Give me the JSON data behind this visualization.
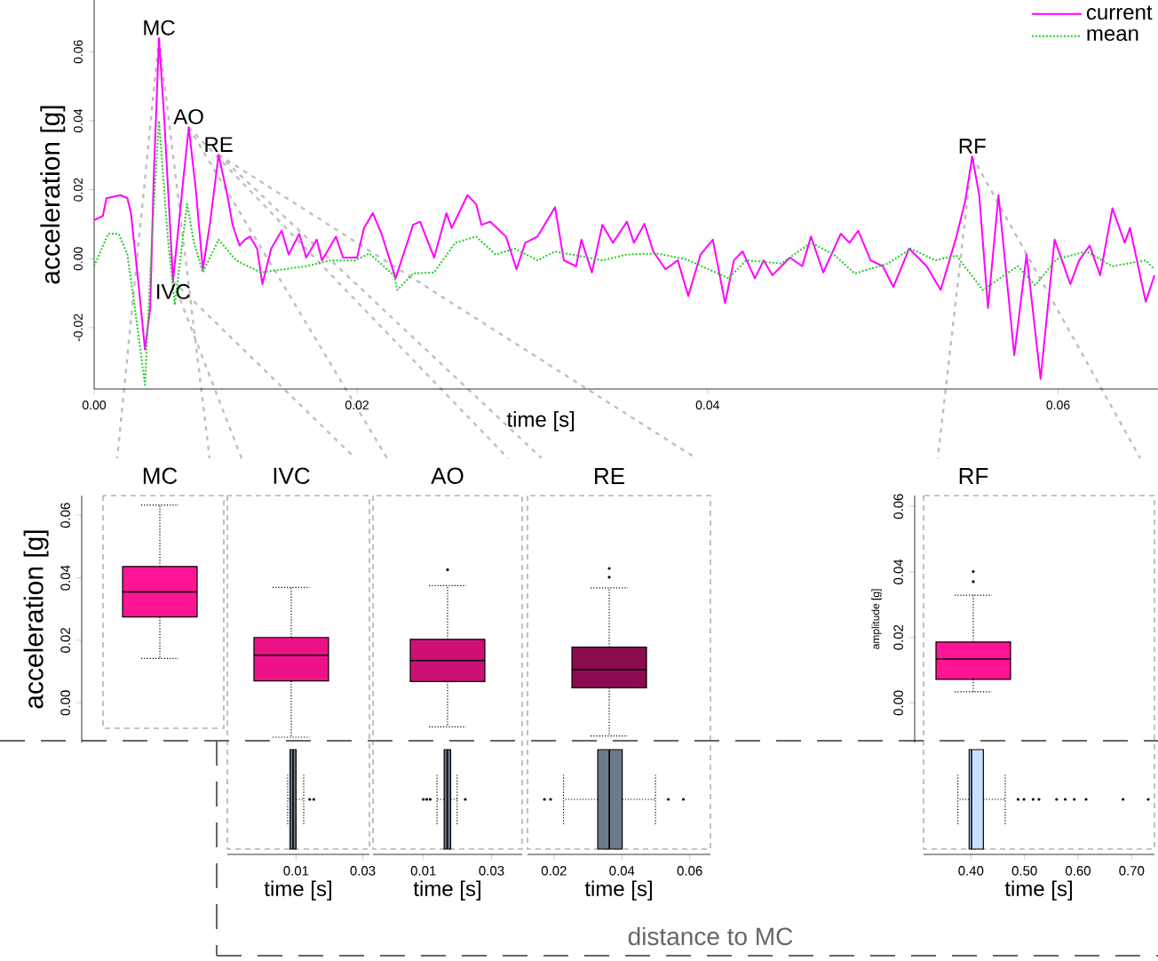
{
  "chart_data": [
    {
      "type": "line",
      "xlabel": "time [s]",
      "ylabel": "acceleration [g]",
      "xlim": [
        0.005,
        0.0657
      ],
      "ylim": [
        -0.0378,
        0.075
      ],
      "xticks": [
        {
          "value": 0.005,
          "label": "0.00"
        },
        {
          "value": 0.02,
          "label": "0.02"
        },
        {
          "value": 0.04,
          "label": "0.04"
        },
        {
          "value": 0.06,
          "label": "0.06"
        }
      ],
      "yticks": [
        {
          "value": -0.02,
          "label": "-0.02"
        },
        {
          "value": 0,
          "label": "0.00"
        },
        {
          "value": 0.02,
          "label": "0.02"
        },
        {
          "value": 0.04,
          "label": "0.04"
        },
        {
          "value": 0.06,
          "label": "0.06"
        }
      ],
      "legend": "top right",
      "annotations": [
        {
          "text": "MC",
          "x": 0.0087,
          "y": 0.0639
        },
        {
          "text": "IVC",
          "x": 0.0095,
          "y": -0.0065
        },
        {
          "text": "AO",
          "x": 0.0104,
          "y": 0.0381
        },
        {
          "text": "RE",
          "x": 0.0121,
          "y": 0.0301
        },
        {
          "text": "RF",
          "x": 0.0551,
          "y": 0.0296
        }
      ],
      "series": [
        {
          "name": "current",
          "color": "#ff00ff",
          "line_style": "solid",
          "x": [
            0.005,
            0.0055,
            0.0057,
            0.0065,
            0.0069,
            0.0071,
            0.0075,
            0.0079,
            0.0082,
            0.0084,
            0.0087,
            0.009,
            0.0095,
            0.0101,
            0.0104,
            0.0108,
            0.0112,
            0.0116,
            0.0121,
            0.0126,
            0.0129,
            0.0133,
            0.0136,
            0.0139,
            0.0143,
            0.0146,
            0.0151,
            0.0157,
            0.0161,
            0.0167,
            0.0171,
            0.0177,
            0.018,
            0.0188,
            0.0192,
            0.02,
            0.0204,
            0.0209,
            0.0214,
            0.0222,
            0.0232,
            0.0236,
            0.0244,
            0.0251,
            0.0254,
            0.0263,
            0.0268,
            0.0271,
            0.0276,
            0.0285,
            0.0291,
            0.0296,
            0.0303,
            0.0313,
            0.0318,
            0.0325,
            0.0328,
            0.0334,
            0.034,
            0.0346,
            0.0354,
            0.0358,
            0.0364,
            0.0369,
            0.0376,
            0.0383,
            0.0389,
            0.0396,
            0.0403,
            0.041,
            0.0415,
            0.042,
            0.0427,
            0.0432,
            0.0437,
            0.0447,
            0.0454,
            0.0459,
            0.0466,
            0.0476,
            0.0481,
            0.0486,
            0.0493,
            0.05,
            0.0506,
            0.0515,
            0.0525,
            0.0533,
            0.0542,
            0.0547,
            0.0551,
            0.0555,
            0.056,
            0.0566,
            0.0575,
            0.0582,
            0.059,
            0.0598,
            0.0607,
            0.0612,
            0.0618,
            0.0624,
            0.0631,
            0.0638,
            0.0641,
            0.065,
            0.0655
          ],
          "values": [
            0.0112,
            0.0124,
            0.0175,
            0.0184,
            0.0175,
            0.0132,
            -0.0057,
            -0.0263,
            -0.0143,
            0.0235,
            0.0639,
            0.0407,
            -0.0065,
            0.0235,
            0.0381,
            0.0201,
            -0.0031,
            0.0098,
            0.0301,
            0.0184,
            0.0098,
            0.0038,
            0.0055,
            0.0064,
            0.0029,
            -0.0074,
            0.0029,
            0.0081,
            0.0012,
            0.0072,
            0.0003,
            0.0055,
            -0.0005,
            0.0064,
            0.0003,
            0.0003,
            0.0089,
            0.0132,
            0.0072,
            -0.0057,
            0.0098,
            0.0107,
            0.0003,
            0.0132,
            0.0089,
            0.0184,
            0.0158,
            0.0098,
            0.0107,
            0.0064,
            -0.0031,
            0.0046,
            0.0064,
            0.0149,
            -0.0005,
            -0.0022,
            0.0055,
            -0.004,
            0.0098,
            0.0046,
            0.0107,
            0.0046,
            0.0101,
            0.0021,
            -0.0031,
            -0.0005,
            -0.0108,
            0.0012,
            0.0055,
            -0.0129,
            -0.0005,
            0.0021,
            -0.0057,
            -0.0005,
            -0.0048,
            0.0003,
            -0.0022,
            0.0064,
            -0.004,
            0.0072,
            0.0046,
            0.0081,
            -0.0005,
            -0.0022,
            -0.0082,
            0.0029,
            -0.0022,
            -0.0091,
            0.0064,
            0.0167,
            0.0296,
            0.0184,
            -0.0143,
            0.0184,
            -0.028,
            0.0012,
            -0.0349,
            0.0055,
            -0.0074,
            -0.0005,
            0.0038,
            -0.0048,
            0.0146,
            0.0046,
            0.0089,
            -0.0125,
            -0.0048
          ]
        },
        {
          "name": "mean",
          "color": "#22cc22",
          "line_style": "dotted",
          "x": [
            0.005,
            0.0058,
            0.0064,
            0.0069,
            0.0075,
            0.0079,
            0.0083,
            0.0087,
            0.0092,
            0.0096,
            0.0103,
            0.0107,
            0.0112,
            0.0121,
            0.0131,
            0.0145,
            0.0158,
            0.0171,
            0.0185,
            0.0199,
            0.0207,
            0.0221,
            0.0223,
            0.0232,
            0.0244,
            0.0256,
            0.0268,
            0.0279,
            0.029,
            0.0303,
            0.0313,
            0.034,
            0.0354,
            0.0371,
            0.0388,
            0.0412,
            0.0422,
            0.0442,
            0.0459,
            0.0472,
            0.0484,
            0.0503,
            0.0516,
            0.053,
            0.0542,
            0.0557,
            0.0577,
            0.0587,
            0.0599,
            0.0616,
            0.0631,
            0.065,
            0.0655
          ],
          "values": [
            -0.0022,
            0.0072,
            0.0072,
            0.0012,
            -0.0211,
            -0.0366,
            0.0064,
            0.0399,
            0.0064,
            -0.0134,
            0.0158,
            0.0046,
            -0.004,
            0.0055,
            -0.0005,
            -0.004,
            -0.0031,
            -0.0022,
            -0.0005,
            -0.0005,
            0.0015,
            -0.0048,
            -0.0091,
            -0.0043,
            -0.004,
            0.0046,
            0.0064,
            0.0012,
            0.0029,
            -0.0005,
            0.0021,
            -0.0005,
            0.0012,
            0.0015,
            -0.0002,
            -0.0057,
            -0.0005,
            -0.0014,
            0.0046,
            0.0012,
            -0.0043,
            -0.0014,
            0.0029,
            -0.0005,
            0.0009,
            -0.0091,
            -0.0022,
            -0.0077,
            -0.0002,
            0.0021,
            -0.0022,
            -0.0005,
            -0.0031
          ]
        }
      ]
    },
    {
      "type": "box",
      "ylabel": "acceleration [g]",
      "categories": [
        "MC",
        "IVC",
        "AO",
        "RE"
      ],
      "colors": [
        "#ff1493",
        "#ee1289",
        "#cd1076",
        "#8b0a50"
      ],
      "ylim": [
        -0.0127,
        0.0663
      ],
      "yticks": [
        {
          "value": 0,
          "label": "0.00"
        },
        {
          "value": 0.02,
          "label": "0.02"
        },
        {
          "value": 0.04,
          "label": "0.04"
        },
        {
          "value": 0.06,
          "label": "0.06"
        }
      ],
      "boxes": [
        {
          "low": 0.0142,
          "q1": 0.0275,
          "median": 0.0355,
          "q3": 0.0436,
          "high": 0.0633
        },
        {
          "low": -0.011,
          "q1": 0.007,
          "median": 0.0152,
          "q3": 0.0209,
          "high": 0.0369
        },
        {
          "low": -0.0077,
          "q1": 0.0068,
          "median": 0.0135,
          "q3": 0.0203,
          "high": 0.0375,
          "outliers": [
            0.0426
          ]
        },
        {
          "low": -0.0106,
          "q1": 0.0048,
          "median": 0.0106,
          "q3": 0.0178,
          "high": 0.0368,
          "outliers": [
            0.0402,
            0.043
          ]
        }
      ]
    },
    {
      "type": "box",
      "ylabel": "amplitude [g]",
      "categories": [
        "RF"
      ],
      "color": "#ff1493",
      "ylim": [
        -0.0121,
        0.0633
      ],
      "yticks": [
        {
          "value": 0,
          "label": "0.00"
        },
        {
          "value": 0.02,
          "label": "0.02"
        },
        {
          "value": 0.04,
          "label": "0.04"
        },
        {
          "value": 0.06,
          "label": "0.06"
        }
      ],
      "boxes": [
        {
          "low": 0.0034,
          "q1": 0.0072,
          "median": 0.0134,
          "q3": 0.0186,
          "high": 0.0329,
          "outliers": [
            0.037,
            0.0401
          ]
        }
      ]
    },
    {
      "type": "box",
      "orientation": "horizontal",
      "xlabel": "time [s]",
      "categories": [
        null
      ],
      "color": "#6c7b8b",
      "xlim": [
        -0.0106,
        0.032
      ],
      "xticks": [
        0.01,
        0.03
      ],
      "annotations": [
        "distance to MC"
      ],
      "boxes": [
        {
          "low": 0.0075,
          "q1": 0.0082,
          "median": 0.0091,
          "q3": 0.01,
          "high": 0.0123,
          "outliers": [
            0.0141,
            0.0153
          ]
        }
      ]
    },
    {
      "type": "box",
      "orientation": "horizontal",
      "xlabel": "time [s]",
      "categories": [
        null
      ],
      "color": "#6c7b8b",
      "xlim": [
        -0.0048,
        0.039
      ],
      "xticks": [
        0.01,
        0.03
      ],
      "boxes": [
        {
          "low": 0.014,
          "q1": 0.0161,
          "median": 0.017,
          "q3": 0.018,
          "high": 0.0199,
          "outliers": [
            0.01,
            0.011,
            0.012,
            0.0223
          ]
        }
      ]
    },
    {
      "type": "box",
      "orientation": "horizontal",
      "xlabel": "time [s]",
      "categories": [
        null
      ],
      "color": "#6c7b8b",
      "xlim": [
        0.0122,
        0.0661
      ],
      "xticks": [
        0.02,
        0.04,
        0.06
      ],
      "boxes": [
        {
          "low": 0.0228,
          "q1": 0.0329,
          "median": 0.0363,
          "q3": 0.0401,
          "high": 0.0499,
          "outliers": [
            0.0172,
            0.019,
            0.0537,
            0.0581
          ]
        }
      ]
    },
    {
      "type": "box",
      "orientation": "horizontal",
      "xlabel": "time [s]",
      "categories": [
        null
      ],
      "color": "#c6e2ff",
      "xlim": [
        0.3116,
        0.7426
      ],
      "xticks": [
        {
          "value": 0.4,
          "label": "0.40"
        },
        {
          "value": 0.5,
          "label": "0.50"
        },
        {
          "value": 0.6,
          "label": "0.60"
        },
        {
          "value": 0.7,
          "label": "0.70"
        }
      ],
      "boxes": [
        {
          "low": 0.3757,
          "q1": 0.3967,
          "median": 0.401,
          "q3": 0.4232,
          "high": 0.464,
          "outliers": [
            0.488,
            0.499,
            0.516,
            0.527,
            0.56,
            0.576,
            0.593,
            0.615,
            0.684,
            0.731
          ]
        }
      ]
    }
  ]
}
